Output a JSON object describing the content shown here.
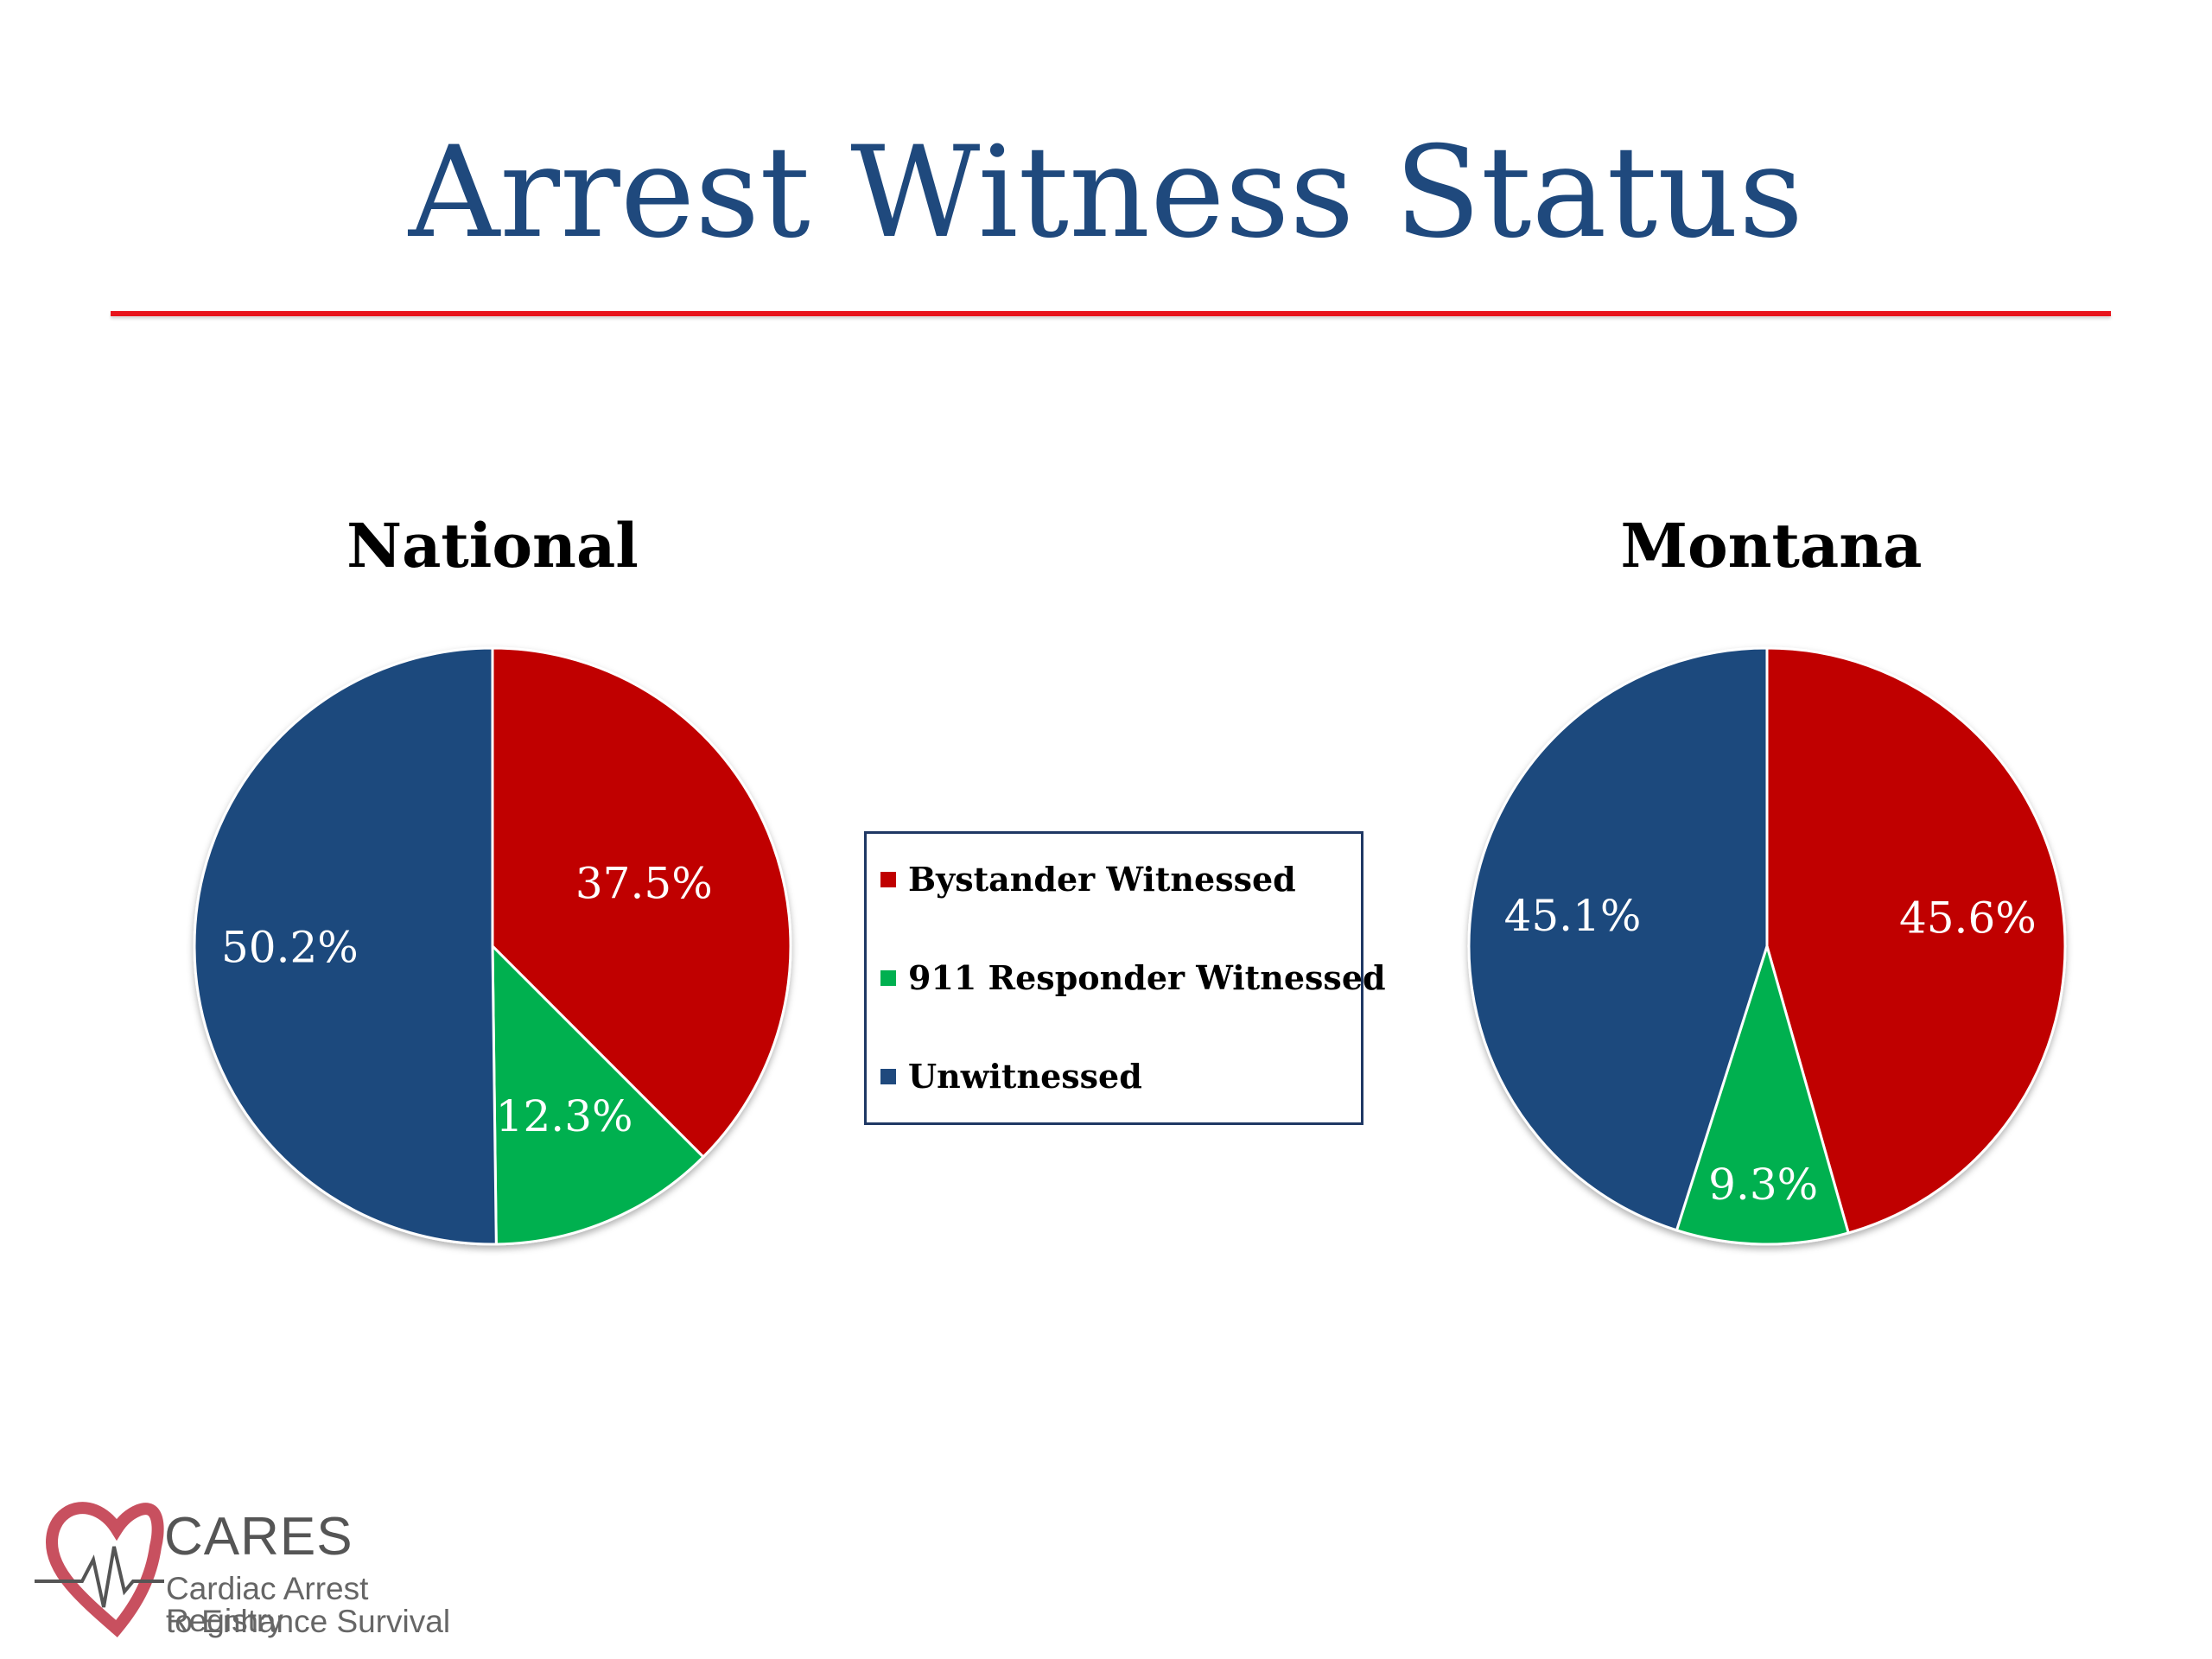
{
  "title": "Arrest Witness Status",
  "colors": {
    "title": "#1f497d",
    "rule": "#e8141c",
    "bystander": "#c00000",
    "responder": "#00b050",
    "unwitnessed": "#1f497d"
  },
  "legend": {
    "items": [
      {
        "label": "Bystander Witnessed",
        "color": "#c00000"
      },
      {
        "label": "911 Responder Witnessed",
        "color": "#00b050"
      },
      {
        "label": "Unwitnessed",
        "color": "#1f497d"
      }
    ]
  },
  "chart_data": [
    {
      "type": "pie",
      "title": "National",
      "categories": [
        "Bystander Witnessed",
        "911 Responder Witnessed",
        "Unwitnessed"
      ],
      "values": [
        37.5,
        12.3,
        50.2
      ],
      "labels": [
        "37.5%",
        "12.3%",
        "50.2%"
      ],
      "colors": [
        "#c00000",
        "#00b050",
        "#1f497d"
      ],
      "start_angle": "12 o'clock",
      "direction": "clockwise"
    },
    {
      "type": "pie",
      "title": "Montana",
      "categories": [
        "Bystander Witnessed",
        "911 Responder Witnessed",
        "Unwitnessed"
      ],
      "values": [
        45.6,
        9.3,
        45.1
      ],
      "labels": [
        "45.6%",
        "9.3%",
        "45.1%"
      ],
      "colors": [
        "#c00000",
        "#00b050",
        "#1f497d"
      ],
      "start_angle": "12 o'clock",
      "direction": "clockwise"
    }
  ],
  "logo": {
    "name": "CARES",
    "line1": "Cardiac Arrest Registry",
    "line2": "to Enhance Survival"
  }
}
